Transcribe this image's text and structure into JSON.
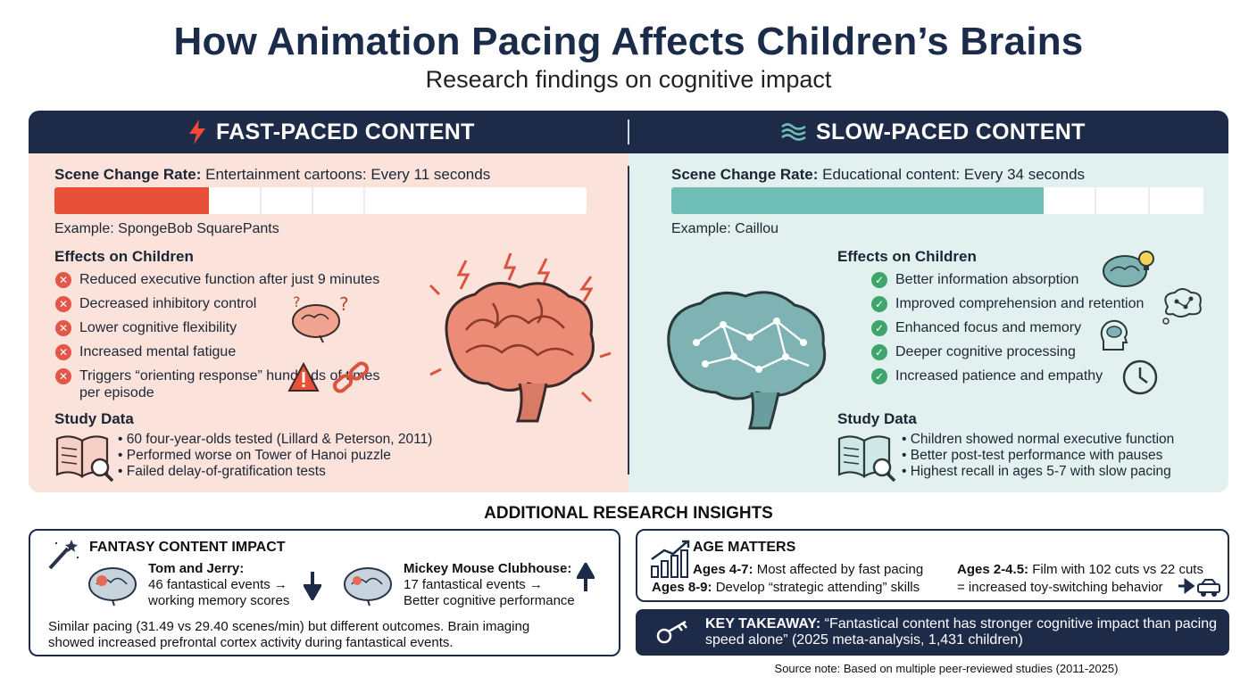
{
  "title": "How Animation Pacing Affects Children’s Brains",
  "subtitle": "Research findings on cognitive impact",
  "colors": {
    "navy": "#1d2b49",
    "fast_bg": "#fbe3dc",
    "slow_bg": "#e2f1f0",
    "fast_accent": "#e8503a",
    "slow_accent": "#6fbdb7",
    "cross": "#e25748",
    "check": "#3fa56a"
  },
  "fast": {
    "header": "FAST-PACED CONTENT",
    "icon": "lightning-bolt-icon",
    "rate_label": "Scene Change Rate:",
    "rate_value": "Entertainment cartoons: Every 11 seconds",
    "bar_fill_fraction": 0.29,
    "example": "Example: SpongeBob SquarePants",
    "effects_title": "Effects on Children",
    "effects": [
      "Reduced executive function after just 9 minutes",
      "Decreased inhibitory control",
      "Lower cognitive flexibility",
      "Increased mental fatigue",
      "Triggers “orienting response” hundreds of times per episode"
    ],
    "study_title": "Study Data",
    "study": [
      "• 60 four-year-olds tested (Lillard & Peterson, 2011)",
      "• Performed worse on Tower of Hanoi puzzle",
      "• Failed delay-of-gratification tests"
    ]
  },
  "slow": {
    "header": "SLOW-PACED CONTENT",
    "icon": "waves-icon",
    "rate_label": "Scene Change Rate:",
    "rate_value": "Educational content: Every 34 seconds",
    "bar_fill_fraction": 0.7,
    "example": "Example: Caillou",
    "effects_title": "Effects on Children",
    "effects": [
      "Better information absorption",
      "Improved comprehension and retention",
      "Enhanced focus and memory",
      "Deeper cognitive processing",
      "Increased patience and empathy"
    ],
    "study_title": "Study Data",
    "study": [
      "• Children showed normal executive function",
      "• Better post-test performance with pauses",
      "• Highest recall in ages 5-7 with slow pacing"
    ]
  },
  "insights": {
    "title": "ADDITIONAL RESEARCH INSIGHTS",
    "fantasy": {
      "title": "FANTASY CONTENT IMPACT",
      "tom_title": "Tom and Jerry:",
      "tom_line1": "46 fantastical events →",
      "tom_line2": "working memory scores",
      "mickey_title": "Mickey Mouse Clubhouse:",
      "mickey_line1": "17 fantastical events →",
      "mickey_line2": "Better cognitive performance",
      "summary1": "Similar pacing (31.49 vs 29.40 scenes/min) but different outcomes. Brain imaging",
      "summary2": "showed increased prefrontal cortex activity during fantastical events."
    },
    "age": {
      "title": "AGE MATTERS",
      "a1_label": "Ages 4-7:",
      "a1_text": "Most affected by fast pacing",
      "a2_label": "Ages 8-9:",
      "a2_text": "Develop “strategic attending” skills",
      "a3_label": "Ages 2-4.5:",
      "a3_text": "Film with 102 cuts vs 22 cuts",
      "a3_text2": "= increased toy-switching behavior"
    },
    "takeaway_label": "KEY TAKEAWAY:",
    "takeaway_text": "“Fantastical content has stronger cognitive impact than pacing speed alone” (2025 meta-analysis, 1,431 children)",
    "source": "Source note: Based on multiple peer-reviewed studies (2011-2025)"
  }
}
